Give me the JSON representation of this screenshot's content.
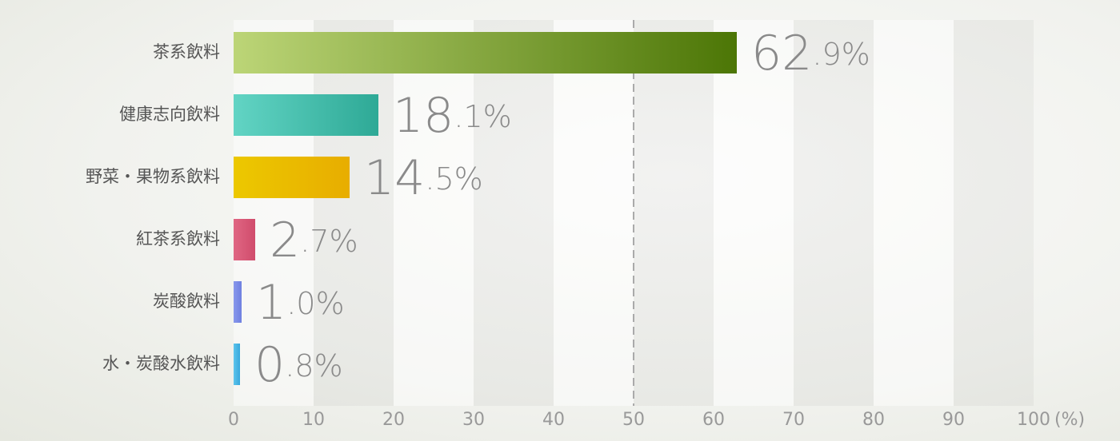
{
  "chart_data": {
    "type": "hbar",
    "categories": [
      "茶系飲料",
      "健康志向飲料",
      "野菜・果物系飲料",
      "紅茶系飲料",
      "炭酸飲料",
      "水・炭酸水飲料"
    ],
    "values": [
      62.9,
      18.1,
      14.5,
      2.7,
      1.0,
      0.8
    ],
    "value_labels": [
      "62.9%",
      "18.1%",
      "14.5%",
      "2.7%",
      "1.0%",
      "0.8%"
    ],
    "colors": [
      [
        "#bcd577",
        "#4c7606"
      ],
      [
        "#62d4c4",
        "#2ea996"
      ],
      [
        "#ecc800",
        "#e8ad00"
      ],
      [
        "#e06683",
        "#d04c6c"
      ],
      [
        "#8898ec",
        "#6f80e0"
      ],
      [
        "#5cc4ec",
        "#38a8dc"
      ]
    ],
    "xlim": [
      0,
      100
    ],
    "xticks": [
      0,
      10,
      20,
      30,
      40,
      50,
      60,
      70,
      80,
      90,
      100
    ],
    "x_axis_label": "(%)",
    "reference_line": 50,
    "grid_bands": true
  }
}
